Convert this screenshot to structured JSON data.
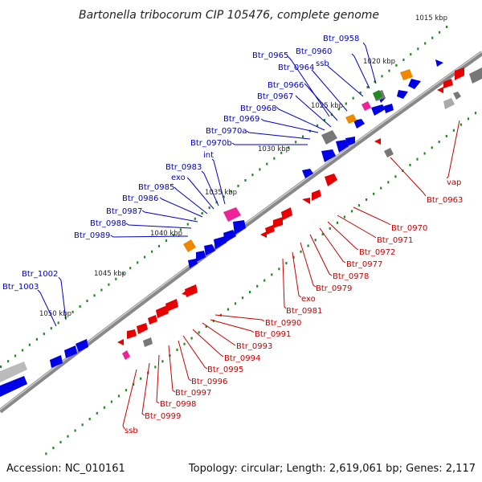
{
  "title": "Bartonella tribocorum CIP 105476, complete genome",
  "accession": "Accession: NC_010161",
  "summary": "Topology: circular; Length: 2,619,061 bp; Genes: 2,117",
  "colors": {
    "forward_label": "#0000c8",
    "reverse_label": "#c80000",
    "cds_forward": "#0000e6",
    "cds_reverse": "#e60000",
    "rna_gray": "#777777",
    "orange": "#ee8800",
    "magenta": "#ee2299",
    "green": "#228822",
    "backbone": "#888888"
  },
  "kbp_ticks": [
    "1015 kbp",
    "1020 kbp",
    "1025 kbp",
    "1030 kbp",
    "1035 kbp",
    "1040 kbp",
    "1045 kbp",
    "1050 kbp"
  ],
  "forward_labels": [
    "Btr_0958",
    "Btr_0960",
    "ssb",
    "Btr_0965",
    "Btr_0964",
    "Btr_0966",
    "Btr_0967",
    "Btr_0968",
    "Btr_0969",
    "Btr_0970a",
    "Btr_0970b",
    "int",
    "Btr_0983",
    "exo",
    "Btr_0985",
    "Btr_0986",
    "Btr_0987",
    "Btr_0988",
    "Btr_0989",
    "Btr_1002",
    "Btr_1003"
  ],
  "reverse_labels": [
    "vap",
    "Btr_0963",
    "Btr_0970",
    "Btr_0971",
    "Btr_0972",
    "Btr_0977",
    "Btr_0978",
    "Btr_0979",
    "exo",
    "Btr_0981",
    "Btr_0990",
    "Btr_0991",
    "Btr_0993",
    "Btr_0994",
    "Btr_0995",
    "Btr_0996",
    "Btr_0997",
    "Btr_0998",
    "Btr_0999",
    "ssb"
  ]
}
